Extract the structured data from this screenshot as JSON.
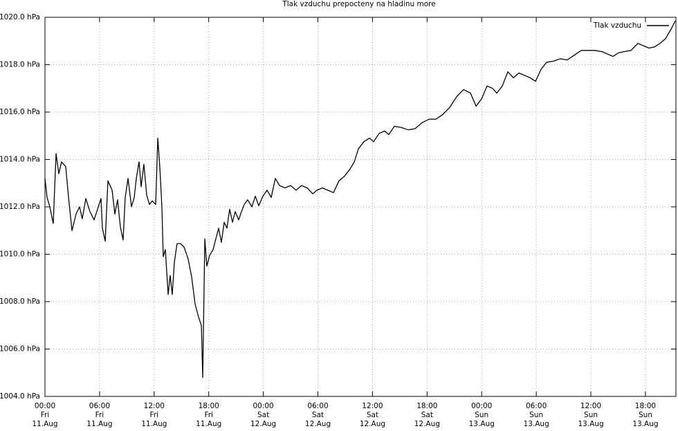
{
  "chart_data": {
    "type": "line",
    "title": "Tlak vzduchu prepocteny na hladinu more",
    "legend": "upper right",
    "grid": true,
    "xlim": [
      0,
      69.35
    ],
    "ylim": [
      1004,
      1020
    ],
    "xticks": [
      {
        "value": 0,
        "label": [
          "00:00",
          "Fri",
          "11.Aug"
        ]
      },
      {
        "value": 6,
        "label": [
          "06:00",
          "Fri",
          "11.Aug"
        ]
      },
      {
        "value": 12,
        "label": [
          "12:00",
          "Fri",
          "11.Aug"
        ]
      },
      {
        "value": 18,
        "label": [
          "18:00",
          "Fri",
          "11.Aug"
        ]
      },
      {
        "value": 24,
        "label": [
          "00:00",
          "Sat",
          "12.Aug"
        ]
      },
      {
        "value": 30,
        "label": [
          "06:00",
          "Sat",
          "12.Aug"
        ]
      },
      {
        "value": 36,
        "label": [
          "12:00",
          "Sat",
          "12.Aug"
        ]
      },
      {
        "value": 42,
        "label": [
          "18:00",
          "Sat",
          "12.Aug"
        ]
      },
      {
        "value": 48,
        "label": [
          "00:00",
          "Sun",
          "13.Aug"
        ]
      },
      {
        "value": 54,
        "label": [
          "06:00",
          "Sun",
          "13.Aug"
        ]
      },
      {
        "value": 60,
        "label": [
          "12:00",
          "Sun",
          "13.Aug"
        ]
      },
      {
        "value": 66,
        "label": [
          "18:00",
          "Sun",
          "13.Aug"
        ]
      }
    ],
    "yticks": [
      {
        "value": 1004,
        "label": "1004.0 hPa"
      },
      {
        "value": 1006,
        "label": "1006.0 hPa"
      },
      {
        "value": 1008,
        "label": "1008.0 hPa"
      },
      {
        "value": 1010,
        "label": "1010.0 hPa"
      },
      {
        "value": 1012,
        "label": "1012.0 hPa"
      },
      {
        "value": 1014,
        "label": "1014.0 hPa"
      },
      {
        "value": 1016,
        "label": "1016.0 hPa"
      },
      {
        "value": 1018,
        "label": "1018.0 hPa"
      },
      {
        "value": 1020,
        "label": "1020.0 hPa"
      }
    ],
    "x": [
      0,
      0.23,
      0.53,
      0.91,
      1.22,
      1.52,
      1.82,
      2.28,
      2.59,
      2.97,
      3.42,
      3.8,
      4.1,
      4.49,
      4.94,
      5.4,
      5.86,
      6.16,
      6.31,
      6.62,
      6.92,
      7.38,
      7.68,
      7.98,
      8.29,
      8.59,
      8.82,
      9.13,
      9.51,
      9.81,
      10.04,
      10.34,
      10.57,
      10.87,
      11.18,
      11.48,
      11.79,
      12.17,
      12.4,
      12.62,
      12.85,
      13.0,
      13.23,
      13.54,
      13.76,
      13.99,
      14.22,
      14.52,
      14.9,
      15.29,
      15.74,
      16.12,
      16.5,
      16.88,
      17.19,
      17.34,
      17.57,
      17.79,
      18.1,
      18.48,
      18.78,
      19.09,
      19.39,
      19.7,
      20.0,
      20.3,
      20.61,
      20.91,
      21.29,
      21.6,
      21.9,
      22.28,
      22.74,
      23.12,
      23.5,
      23.95,
      24.41,
      24.87,
      25.32,
      25.78,
      26.39,
      27.0,
      27.6,
      28.21,
      28.82,
      29.43,
      29.89,
      30.49,
      31.1,
      31.71,
      32.32,
      32.93,
      33.54,
      34.0,
      34.45,
      35.06,
      35.67,
      36.12,
      36.73,
      37.34,
      37.79,
      38.4,
      39.16,
      39.92,
      40.68,
      41.44,
      42.21,
      42.97,
      43.73,
      44.49,
      45.25,
      46.01,
      46.77,
      47.38,
      47.98,
      48.59,
      49.2,
      49.66,
      50.27,
      50.87,
      51.48,
      52.09,
      52.7,
      53.31,
      53.92,
      54.52,
      55.13,
      55.89,
      56.65,
      57.41,
      58.17,
      58.94,
      59.7,
      60.46,
      61.22,
      61.83,
      62.43,
      63.04,
      63.65,
      64.41,
      65.17,
      65.78,
      66.39,
      67.0,
      67.6,
      68.21,
      68.82,
      69.28
    ],
    "series": [
      {
        "name": "Tlak vzduchu",
        "color": "#000000",
        "values": [
          1013.2,
          1012.4,
          1012.0,
          1011.3,
          1014.25,
          1013.4,
          1013.9,
          1013.7,
          1012.4,
          1011.0,
          1011.7,
          1012.0,
          1011.5,
          1012.35,
          1011.8,
          1011.45,
          1012.0,
          1012.35,
          1011.1,
          1010.55,
          1013.1,
          1012.7,
          1011.7,
          1012.3,
          1011.15,
          1010.6,
          1012.4,
          1013.2,
          1012.0,
          1012.4,
          1013.2,
          1013.9,
          1012.85,
          1013.8,
          1012.5,
          1012.1,
          1012.25,
          1012.1,
          1014.9,
          1013.7,
          1012.0,
          1009.9,
          1010.2,
          1008.3,
          1009.1,
          1008.3,
          1009.65,
          1010.45,
          1010.45,
          1010.3,
          1009.8,
          1009.05,
          1007.9,
          1007.35,
          1007.0,
          1004.8,
          1010.65,
          1009.5,
          1009.95,
          1010.2,
          1010.65,
          1011.1,
          1010.5,
          1011.35,
          1011.1,
          1011.9,
          1011.35,
          1011.8,
          1011.45,
          1011.8,
          1012.1,
          1012.3,
          1012.0,
          1012.45,
          1012.05,
          1012.45,
          1012.7,
          1012.4,
          1013.2,
          1012.9,
          1012.8,
          1012.9,
          1012.7,
          1012.9,
          1012.8,
          1012.55,
          1012.7,
          1012.8,
          1012.7,
          1012.6,
          1013.1,
          1013.3,
          1013.6,
          1013.9,
          1014.45,
          1014.75,
          1014.9,
          1014.75,
          1015.1,
          1015.2,
          1015.05,
          1015.4,
          1015.35,
          1015.25,
          1015.3,
          1015.55,
          1015.7,
          1015.7,
          1015.9,
          1016.2,
          1016.65,
          1016.95,
          1016.8,
          1016.25,
          1016.55,
          1017.1,
          1017.0,
          1016.8,
          1017.1,
          1017.7,
          1017.45,
          1017.65,
          1017.55,
          1017.45,
          1017.3,
          1017.8,
          1018.1,
          1018.15,
          1018.25,
          1018.2,
          1018.4,
          1018.6,
          1018.6,
          1018.6,
          1018.55,
          1018.45,
          1018.35,
          1018.5,
          1018.55,
          1018.6,
          1018.9,
          1018.8,
          1018.7,
          1018.75,
          1018.9,
          1019.1,
          1019.5,
          1019.85
        ]
      }
    ]
  }
}
